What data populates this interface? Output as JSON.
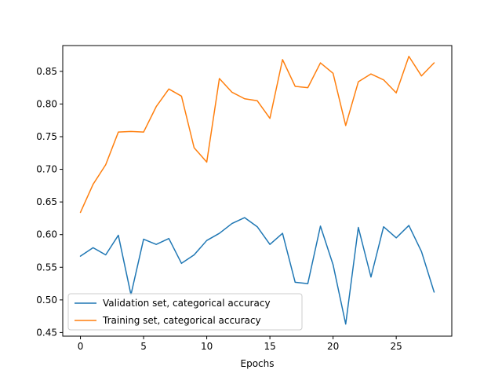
{
  "chart_data": {
    "type": "line",
    "title": "",
    "xlabel": "Epochs",
    "ylabel": "",
    "xlim": [
      -1.4,
      29.4
    ],
    "ylim": [
      0.4445,
      0.8895
    ],
    "xticks": [
      0,
      5,
      10,
      15,
      20,
      25
    ],
    "xtick_labels": [
      "0",
      "5",
      "10",
      "15",
      "20",
      "25"
    ],
    "yticks": [
      0.45,
      0.5,
      0.55,
      0.6,
      0.65,
      0.7,
      0.75,
      0.8,
      0.85
    ],
    "ytick_labels": [
      "0.45",
      "0.50",
      "0.55",
      "0.60",
      "0.65",
      "0.70",
      "0.75",
      "0.80",
      "0.85"
    ],
    "grid": false,
    "legend_position": "lower-left",
    "x": [
      0,
      1,
      2,
      3,
      4,
      5,
      6,
      7,
      8,
      9,
      10,
      11,
      12,
      13,
      14,
      15,
      16,
      17,
      18,
      19,
      20,
      21,
      22,
      23,
      24,
      25,
      26,
      27,
      28
    ],
    "series": [
      {
        "name": "Validation set, categorical accuracy",
        "color": "#1f77b4",
        "values": [
          0.567,
          0.58,
          0.569,
          0.599,
          0.508,
          0.593,
          0.585,
          0.594,
          0.556,
          0.569,
          0.591,
          0.602,
          0.617,
          0.626,
          0.612,
          0.585,
          0.602,
          0.527,
          0.525,
          0.613,
          0.554,
          0.463,
          0.611,
          0.535,
          0.612,
          0.595,
          0.614,
          0.574,
          0.512
        ]
      },
      {
        "name": "Training set, categorical accuracy",
        "color": "#ff7f0e",
        "values": [
          0.634,
          0.677,
          0.707,
          0.757,
          0.758,
          0.757,
          0.796,
          0.823,
          0.812,
          0.733,
          0.711,
          0.839,
          0.818,
          0.808,
          0.805,
          0.778,
          0.868,
          0.827,
          0.825,
          0.863,
          0.847,
          0.767,
          0.834,
          0.846,
          0.837,
          0.817,
          0.873,
          0.843,
          0.863
        ]
      }
    ]
  }
}
